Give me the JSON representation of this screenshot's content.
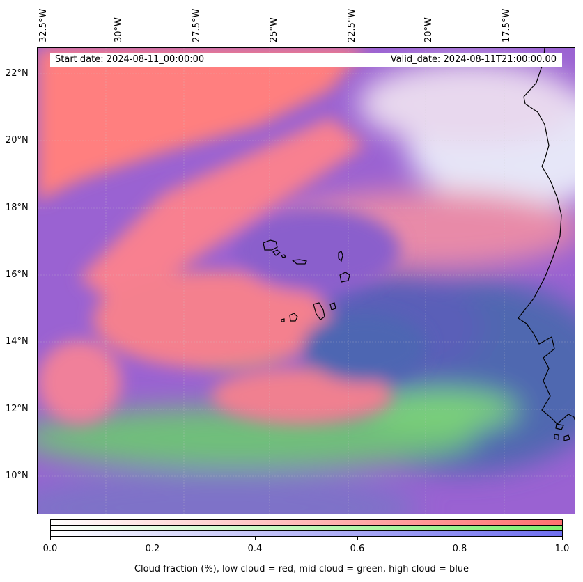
{
  "map": {
    "start_date_text": "Start date: 2024-08-11_00:00:00",
    "valid_date_text": "Valid_date: 2024-08-11T21:00:00.00",
    "lon_labels": [
      "32.5°W",
      "30°W",
      "27.5°W",
      "25°W",
      "22.5°W",
      "20°W",
      "17.5°W"
    ],
    "lat_labels": [
      "22°N",
      "20°N",
      "18°N",
      "16°N",
      "14°N",
      "12°N",
      "10°N"
    ],
    "gridlines": true,
    "colors": {
      "low_cloud": "#ff7f7f",
      "mid_cloud": "#7fef7f",
      "high_cloud": "#7f7fef",
      "sea_clear": "#5a6fa8",
      "mixed": "#9a5fd0",
      "coastline": "#000000"
    }
  },
  "colorbar": {
    "ticks": [
      "0.0",
      "0.2",
      "0.4",
      "0.6",
      "0.8",
      "1.0"
    ],
    "caption": "Cloud fraction (%), low cloud = red, mid cloud = green, high cloud = blue",
    "rows": [
      "low cloud",
      "mid cloud",
      "high cloud"
    ],
    "range": [
      0.0,
      1.0
    ]
  }
}
